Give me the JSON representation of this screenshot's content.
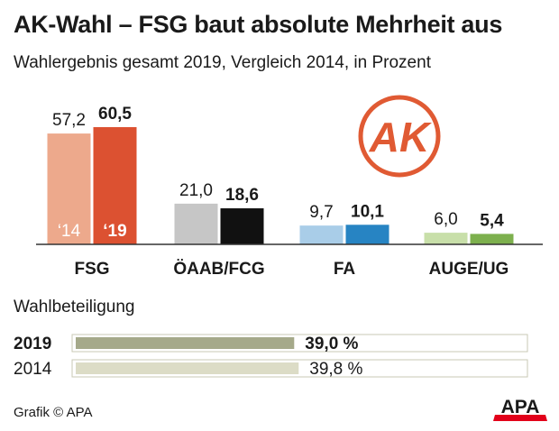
{
  "header": {
    "title": "AK-Wahl – FSG baut absolute Mehrheit aus",
    "subtitle": "Wahlergebnis gesamt 2019, Vergleich 2014, in Prozent"
  },
  "logos": {
    "ak": "AK",
    "apa": "APA"
  },
  "turnout": {
    "heading": "Wahlbeteiligung"
  },
  "footer": {
    "credit": "Grafik © APA"
  },
  "colors": {
    "FSG_2014": "#eda98c",
    "FSG_2019": "#dc5131",
    "OEAAB_2014": "#c6c6c6",
    "OEAAB_2019": "#111111",
    "FA_2014": "#a9cde8",
    "FA_2019": "#2784c3",
    "AUGE_2014": "#c8dfa9",
    "AUGE_2019": "#7db04e",
    "turnout_2019": "#a5a98a",
    "turnout_2014": "#dcdcc6",
    "ak_logo": "#e05a33",
    "apa_red": "#e2001a"
  },
  "chart_data": [
    {
      "type": "bar",
      "categories": [
        "FSG",
        "ÖAAB/FCG",
        "FA",
        "AUGE/UG"
      ],
      "series": [
        {
          "name": "‘14",
          "values": [
            57.2,
            21.0,
            9.7,
            6.0
          ],
          "labels": [
            "57,2",
            "21,0",
            "9,7",
            "6,0"
          ]
        },
        {
          "name": "‘19",
          "values": [
            60.5,
            18.6,
            10.1,
            5.4
          ],
          "labels": [
            "60,5",
            "18,6",
            "10,1",
            "5,4"
          ]
        }
      ],
      "ylim": [
        0,
        60.5
      ]
    },
    {
      "type": "bar",
      "orientation": "horizontal",
      "categories": [
        "2019",
        "2014"
      ],
      "values": [
        39.0,
        39.8
      ],
      "labels": [
        "39,0 %",
        "39,8 %"
      ],
      "xlim": [
        0,
        100
      ]
    }
  ]
}
